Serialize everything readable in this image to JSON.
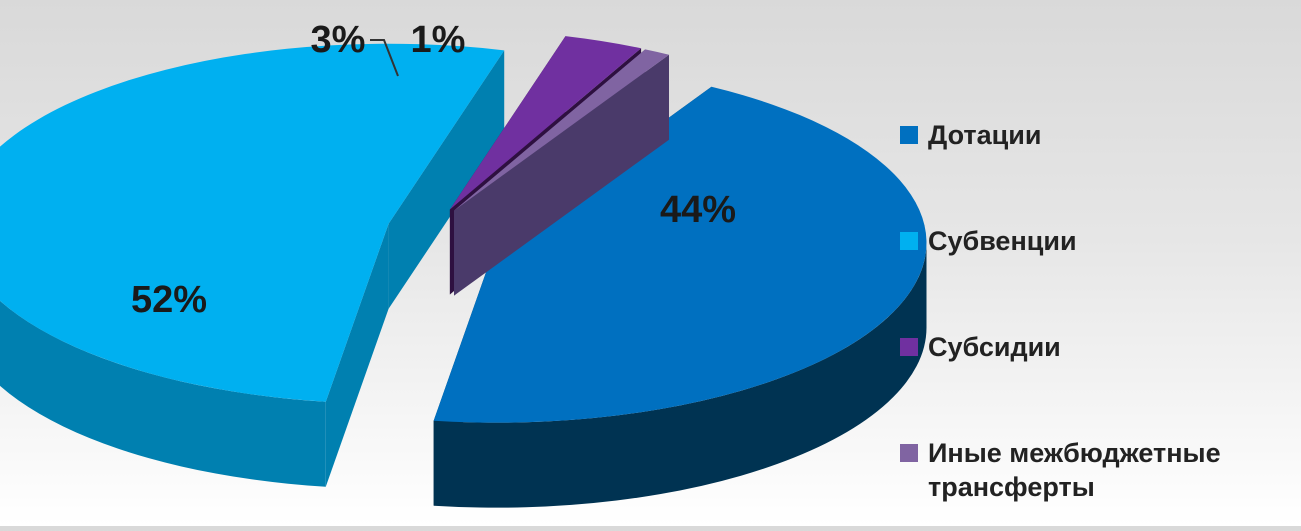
{
  "chart_data": {
    "type": "pie",
    "style": "3d-exploded",
    "title": "",
    "categories": [
      "Дотации",
      "Субвенции",
      "Субсидии",
      "Иные межбюджетные трансферты"
    ],
    "values": [
      44,
      52,
      3,
      1
    ],
    "value_labels": [
      "44%",
      "52%",
      "3%",
      "1%"
    ],
    "colors": [
      "#0070c0",
      "#00b0f0",
      "#7030a0",
      "#8064a2"
    ],
    "side_colors": [
      "#003352",
      "#0080b0",
      "#2e1040",
      "#4a3a6a"
    ],
    "legend_position": "right"
  }
}
